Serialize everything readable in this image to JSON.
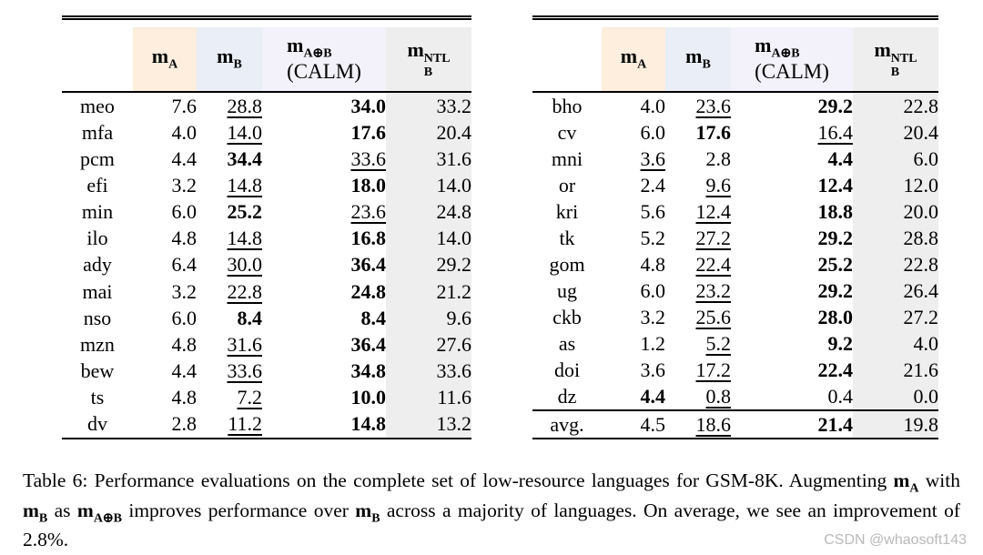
{
  "colors": {
    "ma_bg": "#fdeedd",
    "mb_bg": "#e9eef7",
    "calm_bg": "#f3f1fa",
    "ntl_bg": "#eeeeee"
  },
  "header": {
    "ma": {
      "base": "m",
      "sub": "A"
    },
    "mb": {
      "base": "m",
      "sub": "B"
    },
    "calm": {
      "base": "m",
      "sub": "A⊕B",
      "line2": "(CALM)"
    },
    "ntl": {
      "base": "m",
      "sup": "NTL",
      "sub": "B"
    }
  },
  "tables": [
    {
      "name": "left",
      "rows": [
        {
          "lang": "meo",
          "cells": [
            {
              "v": "7.6",
              "f": ""
            },
            {
              "v": "28.8",
              "f": "u"
            },
            {
              "v": "34.0",
              "f": "b"
            },
            {
              "v": "33.2",
              "f": ""
            }
          ]
        },
        {
          "lang": "mfa",
          "cells": [
            {
              "v": "4.0",
              "f": ""
            },
            {
              "v": "14.0",
              "f": "u"
            },
            {
              "v": "17.6",
              "f": "b"
            },
            {
              "v": "20.4",
              "f": ""
            }
          ]
        },
        {
          "lang": "pcm",
          "cells": [
            {
              "v": "4.4",
              "f": ""
            },
            {
              "v": "34.4",
              "f": "b"
            },
            {
              "v": "33.6",
              "f": "u"
            },
            {
              "v": "31.6",
              "f": ""
            }
          ]
        },
        {
          "lang": "efi",
          "cells": [
            {
              "v": "3.2",
              "f": ""
            },
            {
              "v": "14.8",
              "f": "u"
            },
            {
              "v": "18.0",
              "f": "b"
            },
            {
              "v": "14.0",
              "f": ""
            }
          ]
        },
        {
          "lang": "min",
          "cells": [
            {
              "v": "6.0",
              "f": ""
            },
            {
              "v": "25.2",
              "f": "b"
            },
            {
              "v": "23.6",
              "f": "u"
            },
            {
              "v": "24.8",
              "f": ""
            }
          ]
        },
        {
          "lang": "ilo",
          "cells": [
            {
              "v": "4.8",
              "f": ""
            },
            {
              "v": "14.8",
              "f": "u"
            },
            {
              "v": "16.8",
              "f": "b"
            },
            {
              "v": "14.0",
              "f": ""
            }
          ]
        },
        {
          "lang": "ady",
          "cells": [
            {
              "v": "6.4",
              "f": ""
            },
            {
              "v": "30.0",
              "f": "u"
            },
            {
              "v": "36.4",
              "f": "b"
            },
            {
              "v": "29.2",
              "f": ""
            }
          ]
        },
        {
          "lang": "mai",
          "cells": [
            {
              "v": "3.2",
              "f": ""
            },
            {
              "v": "22.8",
              "f": "u"
            },
            {
              "v": "24.8",
              "f": "b"
            },
            {
              "v": "21.2",
              "f": ""
            }
          ]
        },
        {
          "lang": "nso",
          "cells": [
            {
              "v": "6.0",
              "f": ""
            },
            {
              "v": "8.4",
              "f": "b"
            },
            {
              "v": "8.4",
              "f": "b"
            },
            {
              "v": "9.6",
              "f": ""
            }
          ]
        },
        {
          "lang": "mzn",
          "cells": [
            {
              "v": "4.8",
              "f": ""
            },
            {
              "v": "31.6",
              "f": "u"
            },
            {
              "v": "36.4",
              "f": "b"
            },
            {
              "v": "27.6",
              "f": ""
            }
          ]
        },
        {
          "lang": "bew",
          "cells": [
            {
              "v": "4.4",
              "f": ""
            },
            {
              "v": "33.6",
              "f": "u"
            },
            {
              "v": "34.8",
              "f": "b"
            },
            {
              "v": "33.6",
              "f": ""
            }
          ]
        },
        {
          "lang": "ts",
          "cells": [
            {
              "v": "4.8",
              "f": ""
            },
            {
              "v": "7.2",
              "f": "u"
            },
            {
              "v": "10.0",
              "f": "b"
            },
            {
              "v": "11.6",
              "f": ""
            }
          ]
        },
        {
          "lang": "dv",
          "cells": [
            {
              "v": "2.8",
              "f": ""
            },
            {
              "v": "11.2",
              "f": "u"
            },
            {
              "v": "14.8",
              "f": "b"
            },
            {
              "v": "13.2",
              "f": ""
            }
          ]
        }
      ],
      "footer_rows": []
    },
    {
      "name": "right",
      "rows": [
        {
          "lang": "bho",
          "cells": [
            {
              "v": "4.0",
              "f": ""
            },
            {
              "v": "23.6",
              "f": "u"
            },
            {
              "v": "29.2",
              "f": "b"
            },
            {
              "v": "22.8",
              "f": ""
            }
          ]
        },
        {
          "lang": "cv",
          "cells": [
            {
              "v": "6.0",
              "f": ""
            },
            {
              "v": "17.6",
              "f": "b"
            },
            {
              "v": "16.4",
              "f": "u"
            },
            {
              "v": "20.4",
              "f": ""
            }
          ]
        },
        {
          "lang": "mni",
          "cells": [
            {
              "v": "3.6",
              "f": "u"
            },
            {
              "v": "2.8",
              "f": ""
            },
            {
              "v": "4.4",
              "f": "b"
            },
            {
              "v": "6.0",
              "f": ""
            }
          ]
        },
        {
          "lang": "or",
          "cells": [
            {
              "v": "2.4",
              "f": ""
            },
            {
              "v": "9.6",
              "f": "u"
            },
            {
              "v": "12.4",
              "f": "b"
            },
            {
              "v": "12.0",
              "f": ""
            }
          ]
        },
        {
          "lang": "kri",
          "cells": [
            {
              "v": "5.6",
              "f": ""
            },
            {
              "v": "12.4",
              "f": "u"
            },
            {
              "v": "18.8",
              "f": "b"
            },
            {
              "v": "20.0",
              "f": ""
            }
          ]
        },
        {
          "lang": "tk",
          "cells": [
            {
              "v": "5.2",
              "f": ""
            },
            {
              "v": "27.2",
              "f": "u"
            },
            {
              "v": "29.2",
              "f": "b"
            },
            {
              "v": "28.8",
              "f": ""
            }
          ]
        },
        {
          "lang": "gom",
          "cells": [
            {
              "v": "4.8",
              "f": ""
            },
            {
              "v": "22.4",
              "f": "u"
            },
            {
              "v": "25.2",
              "f": "b"
            },
            {
              "v": "22.8",
              "f": ""
            }
          ]
        },
        {
          "lang": "ug",
          "cells": [
            {
              "v": "6.0",
              "f": ""
            },
            {
              "v": "23.2",
              "f": "u"
            },
            {
              "v": "29.2",
              "f": "b"
            },
            {
              "v": "26.4",
              "f": ""
            }
          ]
        },
        {
          "lang": "ckb",
          "cells": [
            {
              "v": "3.2",
              "f": ""
            },
            {
              "v": "25.6",
              "f": "u"
            },
            {
              "v": "28.0",
              "f": "b"
            },
            {
              "v": "27.2",
              "f": ""
            }
          ]
        },
        {
          "lang": "as",
          "cells": [
            {
              "v": "1.2",
              "f": ""
            },
            {
              "v": "5.2",
              "f": "u"
            },
            {
              "v": "9.2",
              "f": "b"
            },
            {
              "v": "4.0",
              "f": ""
            }
          ]
        },
        {
          "lang": "doi",
          "cells": [
            {
              "v": "3.6",
              "f": ""
            },
            {
              "v": "17.2",
              "f": "u"
            },
            {
              "v": "22.4",
              "f": "b"
            },
            {
              "v": "21.6",
              "f": ""
            }
          ]
        },
        {
          "lang": "dz",
          "cells": [
            {
              "v": "4.4",
              "f": "b"
            },
            {
              "v": "0.8",
              "f": "u"
            },
            {
              "v": "0.4",
              "f": ""
            },
            {
              "v": "0.0",
              "f": ""
            }
          ]
        }
      ],
      "footer_rows": [
        {
          "lang": "avg.",
          "cells": [
            {
              "v": "4.5",
              "f": ""
            },
            {
              "v": "18.6",
              "f": "u"
            },
            {
              "v": "21.4",
              "f": "b"
            },
            {
              "v": "19.8",
              "f": ""
            }
          ]
        }
      ]
    }
  ],
  "caption": {
    "segments": [
      {
        "t": "Table 6:  Performance evaluations on the complete set of low-resource languages for GSM-8K. Augmenting "
      },
      {
        "math": true,
        "base": "m",
        "sub": "A"
      },
      {
        "t": " with "
      },
      {
        "math": true,
        "base": "m",
        "sub": "B"
      },
      {
        "t": " as "
      },
      {
        "math": true,
        "base": "m",
        "sub": "A⊕B"
      },
      {
        "t": " improves performance over "
      },
      {
        "math": true,
        "base": "m",
        "sub": "B"
      },
      {
        "t": " across a majority of languages. On average, we see an improvement of 2.8%."
      }
    ]
  },
  "watermark": "CSDN @whaosoft143"
}
